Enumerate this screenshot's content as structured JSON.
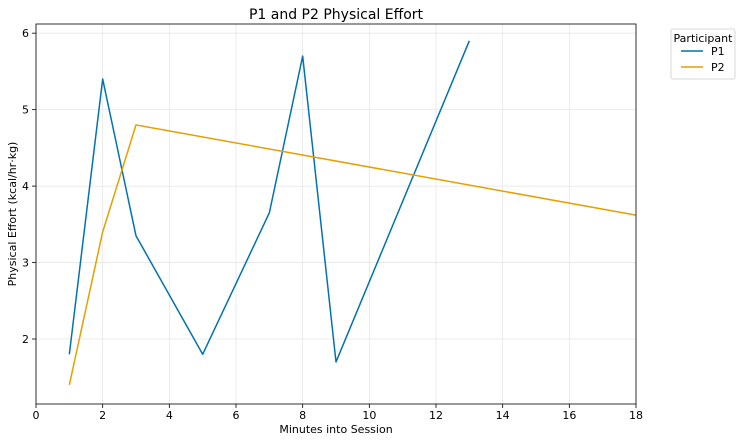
{
  "chart_data": {
    "type": "line",
    "title": "P1 and P2 Physical Effort",
    "xlabel": "Minutes into Session",
    "ylabel": "Physical Effort (kcal/hr·kg)",
    "xlim": [
      0,
      18
    ],
    "ylim": [
      1.15,
      6.12
    ],
    "xticks": [
      0,
      2,
      4,
      6,
      8,
      10,
      12,
      14,
      16,
      18
    ],
    "yticks": [
      2,
      3,
      4,
      5,
      6
    ],
    "grid": true,
    "legend": {
      "title": "Participant",
      "placement": "outside-top-right"
    },
    "series": [
      {
        "name": "P1",
        "color": "#0072B2",
        "x": [
          1,
          2,
          3,
          5,
          7,
          8,
          9,
          13
        ],
        "y": [
          1.8,
          5.4,
          3.35,
          1.8,
          3.65,
          5.7,
          1.7,
          5.9
        ]
      },
      {
        "name": "P2",
        "color": "#E69F00",
        "x": [
          1,
          2,
          3,
          18
        ],
        "y": [
          1.4,
          3.4,
          4.8,
          3.62
        ]
      }
    ]
  }
}
